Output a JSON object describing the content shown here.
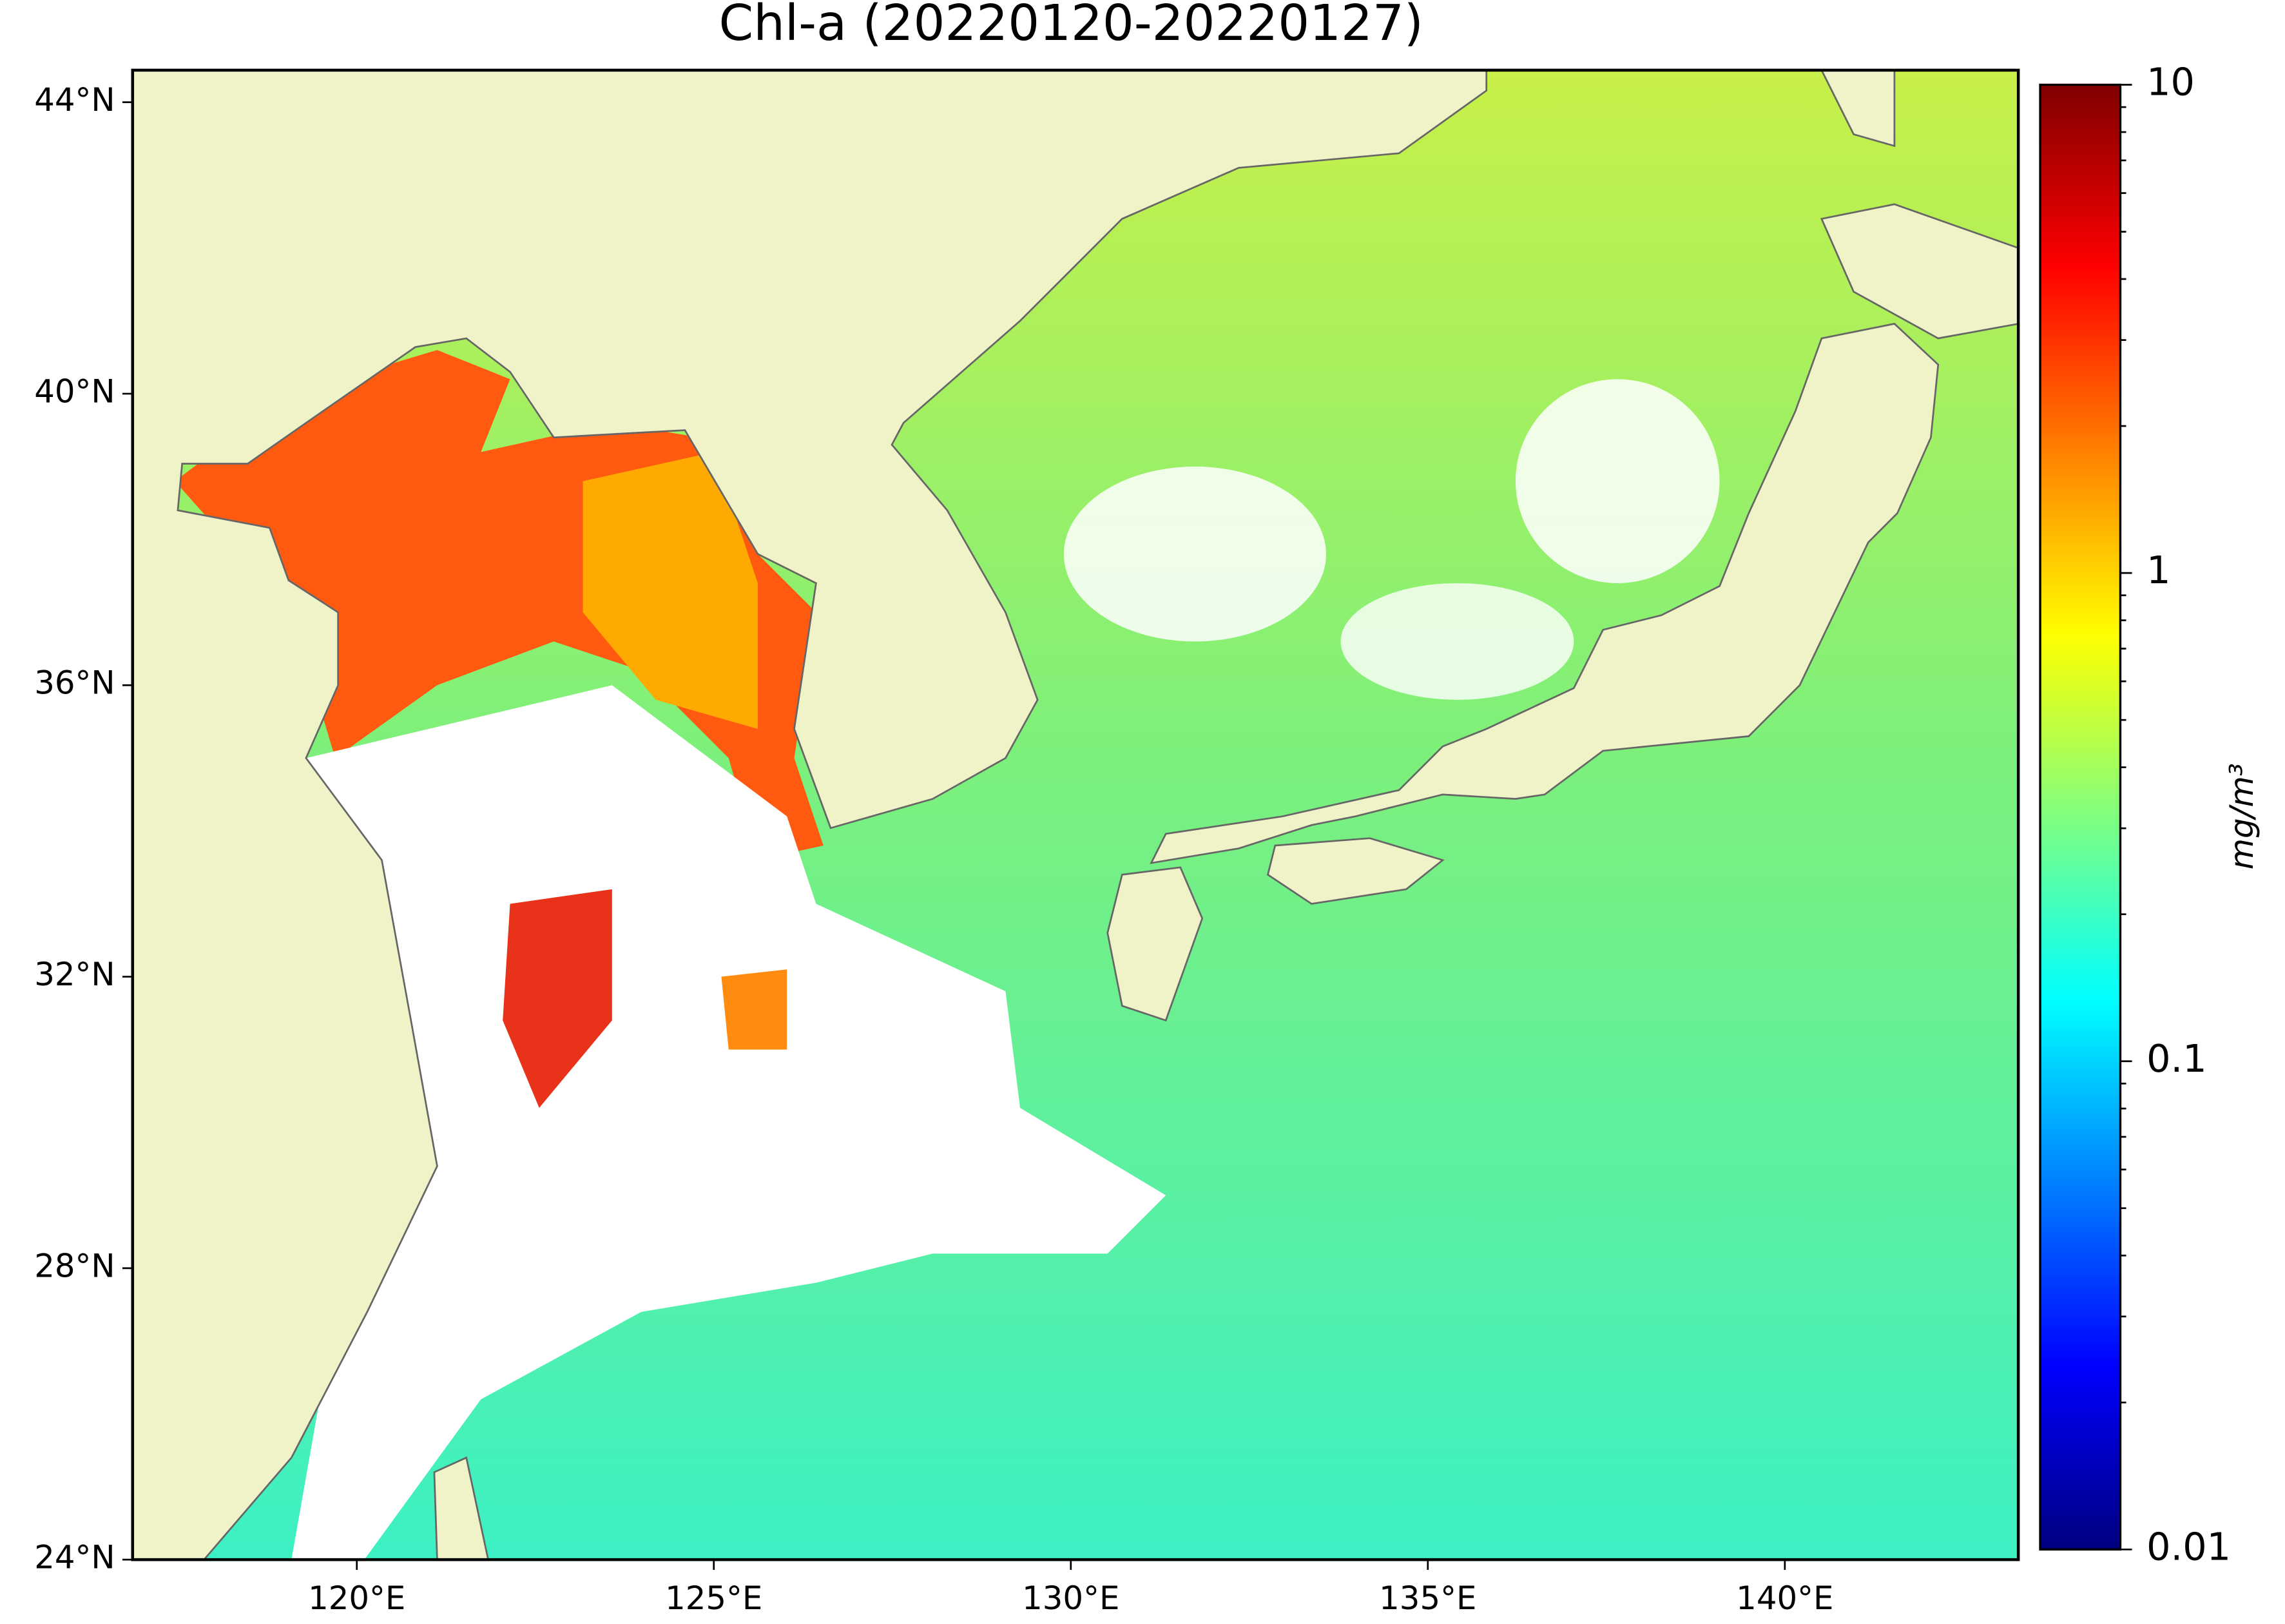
{
  "chart_data": {
    "type": "map",
    "title": "Chl-a (20220120-20220127)",
    "xlim": [
      116.86,
      143.27
    ],
    "ylim": [
      24,
      44.44
    ],
    "xticks": [
      {
        "value": 120,
        "label": "120°E"
      },
      {
        "value": 125,
        "label": "125°E"
      },
      {
        "value": 130,
        "label": "130°E"
      },
      {
        "value": 135,
        "label": "135°E"
      },
      {
        "value": 140,
        "label": "140°E"
      }
    ],
    "yticks": [
      {
        "value": 24,
        "label": "24°N"
      },
      {
        "value": 28,
        "label": "28°N"
      },
      {
        "value": 32,
        "label": "32°N"
      },
      {
        "value": 36,
        "label": "36°N"
      },
      {
        "value": 40,
        "label": "40°N"
      },
      {
        "value": 44,
        "label": "44°N"
      }
    ],
    "colorbar": {
      "label": "mg/m³",
      "colormap": "jet",
      "log_scale": true,
      "lim": [
        0.01,
        10
      ],
      "ticks": [
        0.01,
        0.1,
        1,
        10
      ]
    }
  }
}
